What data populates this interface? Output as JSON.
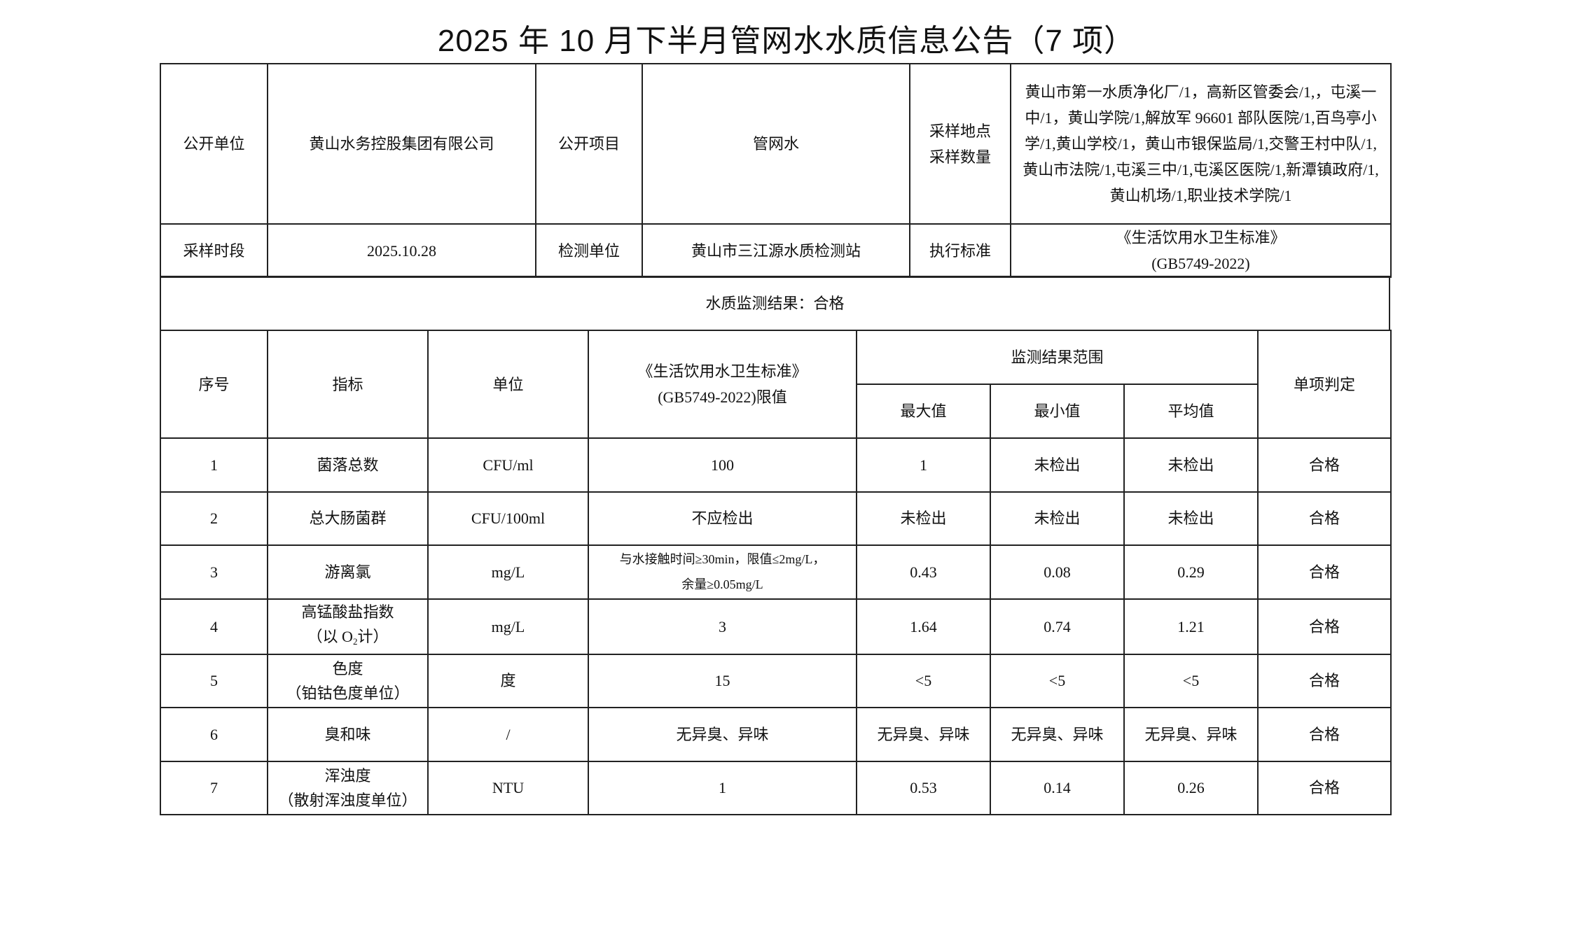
{
  "title": "2025 年 10 月下半月管网水水质信息公告（7 项）",
  "info": {
    "publisher_label": "公开单位",
    "publisher": "黄山水务控股集团有限公司",
    "item_label": "公开项目",
    "item": "管网水",
    "sites_label_1": "采样地点",
    "sites_label_2": "采样数量",
    "sites": "黄山市第一水质净化厂/1，高新区管委会/1,，屯溪一中/1，黄山学院/1,解放军 96601 部队医院/1,百鸟亭小学/1,黄山学校/1，黄山市银保监局/1,交警王村中队/1,黄山市法院/1,屯溪三中/1,屯溪区医院/1,新潭镇政府/1,黄山机场/1,职业技术学院/1",
    "period_label": "采样时段",
    "period": "2025.10.28",
    "lab_label": "检测单位",
    "lab": "黄山市三江源水质检测站",
    "standard_label": "执行标准",
    "standard_1": "《生活饮用水卫生标准》",
    "standard_2": "(GB5749-2022)"
  },
  "result_summary": "水质监测结果：合格",
  "headers": {
    "no": "序号",
    "indicator": "指标",
    "unit": "单位",
    "limit_1": "《生活饮用水卫生标准》",
    "limit_2": "(GB5749-2022)限值",
    "range": "监测结果范围",
    "max": "最大值",
    "min": "最小值",
    "avg": "平均值",
    "verdict": "单项判定"
  },
  "rows": [
    {
      "no": "1",
      "name": "菌落总数",
      "name2": "",
      "unit": "CFU/ml",
      "limit": "100",
      "limit2": "",
      "max": "1",
      "min": "未检出",
      "avg": "未检出",
      "verdict": "合格"
    },
    {
      "no": "2",
      "name": "总大肠菌群",
      "name2": "",
      "unit": "CFU/100ml",
      "limit": "不应检出",
      "limit2": "",
      "max": "未检出",
      "min": "未检出",
      "avg": "未检出",
      "verdict": "合格"
    },
    {
      "no": "3",
      "name": "游离氯",
      "name2": "",
      "unit": "mg/L",
      "limit": "与水接触时间≥30min，限值≤2mg/L，",
      "limit2": "余量≥0.05mg/L",
      "max": "0.43",
      "min": "0.08",
      "avg": "0.29",
      "verdict": "合格"
    },
    {
      "no": "4",
      "name": "高锰酸盐指数",
      "name2_pre": "（以 O",
      "name2_sub": "2",
      "name2_post": "计）",
      "unit": "mg/L",
      "limit": "3",
      "limit2": "",
      "max": "1.64",
      "min": "0.74",
      "avg": "1.21",
      "verdict": "合格"
    },
    {
      "no": "5",
      "name": "色度",
      "name2": "（铂钴色度单位）",
      "unit": "度",
      "limit": "15",
      "limit2": "",
      "max": "<5",
      "min": "<5",
      "avg": "<5",
      "verdict": "合格"
    },
    {
      "no": "6",
      "name": "臭和味",
      "name2": "",
      "unit": "/",
      "limit": "无异臭、异味",
      "limit2": "",
      "max": "无异臭、异味",
      "min": "无异臭、异味",
      "avg": "无异臭、异味",
      "verdict": "合格"
    },
    {
      "no": "7",
      "name": "浑浊度",
      "name2": "（散射浑浊度单位）",
      "unit": "NTU",
      "limit": "1",
      "limit2": "",
      "max": "0.53",
      "min": "0.14",
      "avg": "0.26",
      "verdict": "合格"
    }
  ]
}
